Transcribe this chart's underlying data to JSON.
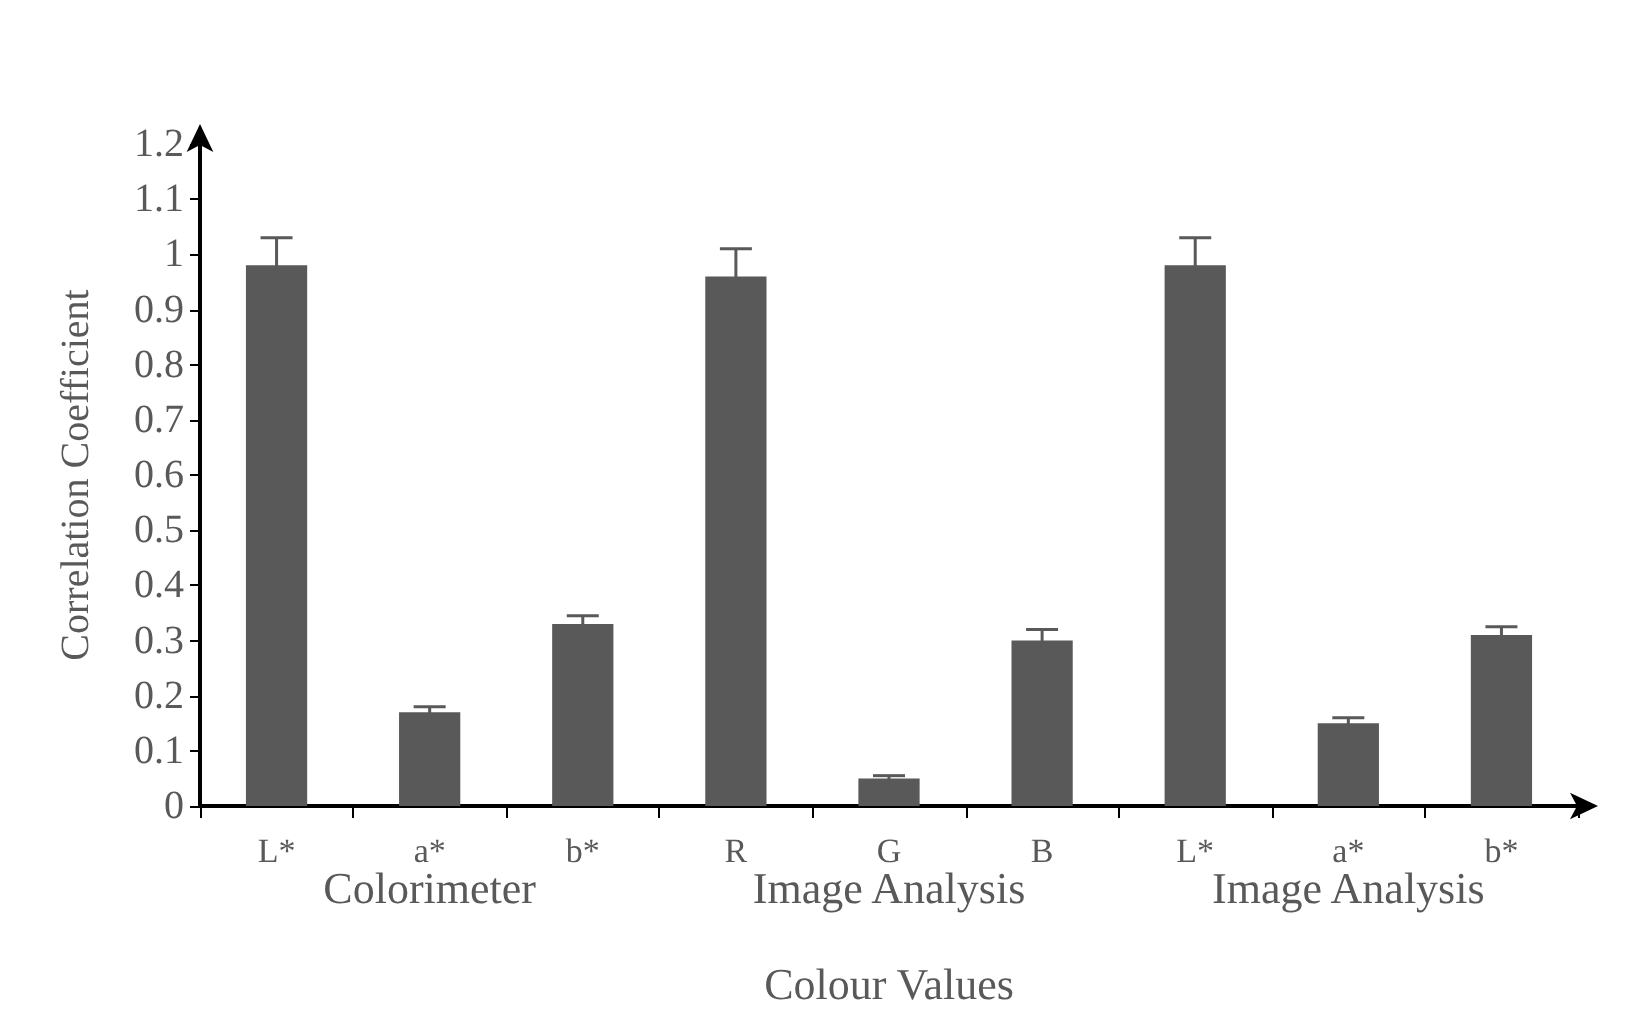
{
  "chart_data": {
    "type": "bar",
    "xlabel": "Colour Values",
    "ylabel": "Correlation Coefficient",
    "categories": [
      "L*",
      "a*",
      "b*",
      "R",
      "G",
      "B",
      "L*",
      "a*",
      "b*"
    ],
    "values": [
      0.98,
      0.17,
      0.33,
      0.96,
      0.05,
      0.3,
      0.98,
      0.15,
      0.31
    ],
    "errors": [
      0.05,
      0.01,
      0.015,
      0.05,
      0.005,
      0.02,
      0.05,
      0.01,
      0.015
    ],
    "color": "#595959",
    "ylim": [
      0,
      1.2
    ],
    "yticks": [
      0,
      0.1,
      0.2,
      0.3,
      0.4,
      0.5,
      0.6,
      0.7,
      0.8,
      0.9,
      1,
      1.1,
      1.2
    ],
    "annotations": [
      "Colorimeter",
      "Image Analysis",
      "Image Analysis"
    ],
    "grid": false
  }
}
